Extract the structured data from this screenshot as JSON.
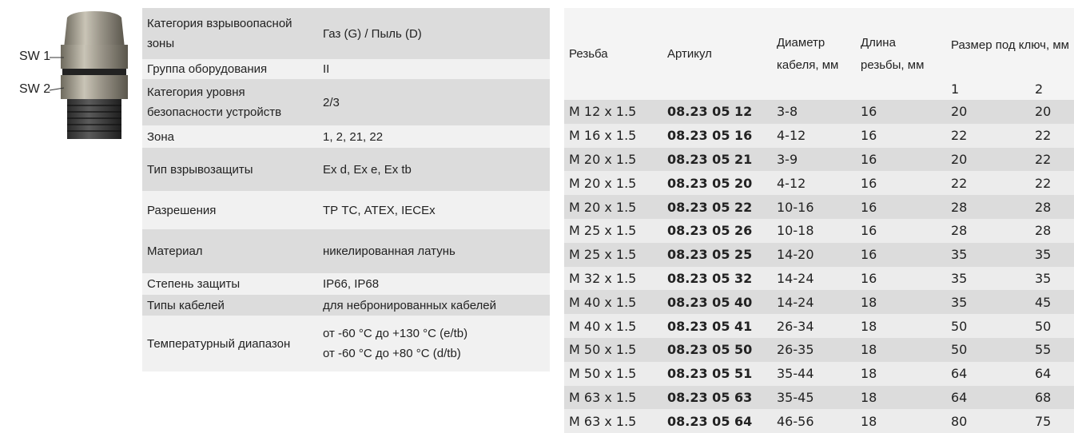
{
  "image_labels": [
    "SW 1",
    "SW 2"
  ],
  "specs": {
    "rows": [
      [
        "Категория взрывоопасной зоны",
        "Газ (G) / Пыль (D)"
      ],
      [
        "Группа оборудования",
        "II"
      ],
      [
        "Категория уровня безопасности устройств",
        "2/3"
      ],
      [
        "Зона",
        "1, 2, 21, 22"
      ],
      [
        "Тип взрывозащиты",
        "Ex d, Ex e, Ex tb"
      ],
      [
        "Разрешения",
        "ТР ТС, ATEX, IECEx"
      ],
      [
        "Материал",
        "никелированная латунь"
      ],
      [
        "Степень защиты",
        "IP66, IP68"
      ],
      [
        "Типы кабелей",
        "для небронированных кабелей"
      ],
      [
        "Температурный диапазон",
        [
          "от -60 °C до +130 °C (e/tb)",
          "от -60 °C до +80 °C (d/tb)"
        ]
      ]
    ]
  },
  "table": {
    "header": [
      "Резьба",
      "Артикул",
      "Диаметр кабеля, мм",
      "Длина резьбы, мм",
      "Размер под ключ, мм"
    ],
    "subheader": [
      "1",
      "2"
    ],
    "rows": [
      [
        "M 12 x 1.5",
        "08.23 05 12",
        "3-8",
        "16",
        "20",
        "20"
      ],
      [
        "M 16 x 1.5",
        "08.23 05 16",
        "4-12",
        "16",
        "22",
        "22"
      ],
      [
        "M 20 x 1.5",
        "08.23 05 21",
        "3-9",
        "16",
        "20",
        "22"
      ],
      [
        "M 20 x 1.5",
        "08.23 05 20",
        "4-12",
        "16",
        "22",
        "22"
      ],
      [
        "M 20 x 1.5",
        "08.23 05 22",
        "10-16",
        "16",
        "28",
        "28"
      ],
      [
        "M 25 x 1.5",
        "08.23 05 26",
        "10-18",
        "16",
        "28",
        "28"
      ],
      [
        "M 25 x 1.5",
        "08.23 05 25",
        "14-20",
        "16",
        "35",
        "35"
      ],
      [
        "M 32 x 1.5",
        "08.23 05 32",
        "14-24",
        "16",
        "35",
        "35"
      ],
      [
        "M 40 x 1.5",
        "08.23 05 40",
        "14-24",
        "18",
        "35",
        "45"
      ],
      [
        "M 40 x 1.5",
        "08.23 05 41",
        "26-34",
        "18",
        "50",
        "50"
      ],
      [
        "M 50 x 1.5",
        "08.23 05 50",
        "26-35",
        "18",
        "50",
        "55"
      ],
      [
        "M 50 x 1.5",
        "08.23 05 51",
        "35-44",
        "18",
        "64",
        "64"
      ],
      [
        "M 63 x 1.5",
        "08.23 05 63",
        "35-45",
        "18",
        "64",
        "68"
      ],
      [
        "M 63 x 1.5",
        "08.23 05 64",
        "46-56",
        "18",
        "80",
        "75"
      ]
    ]
  }
}
